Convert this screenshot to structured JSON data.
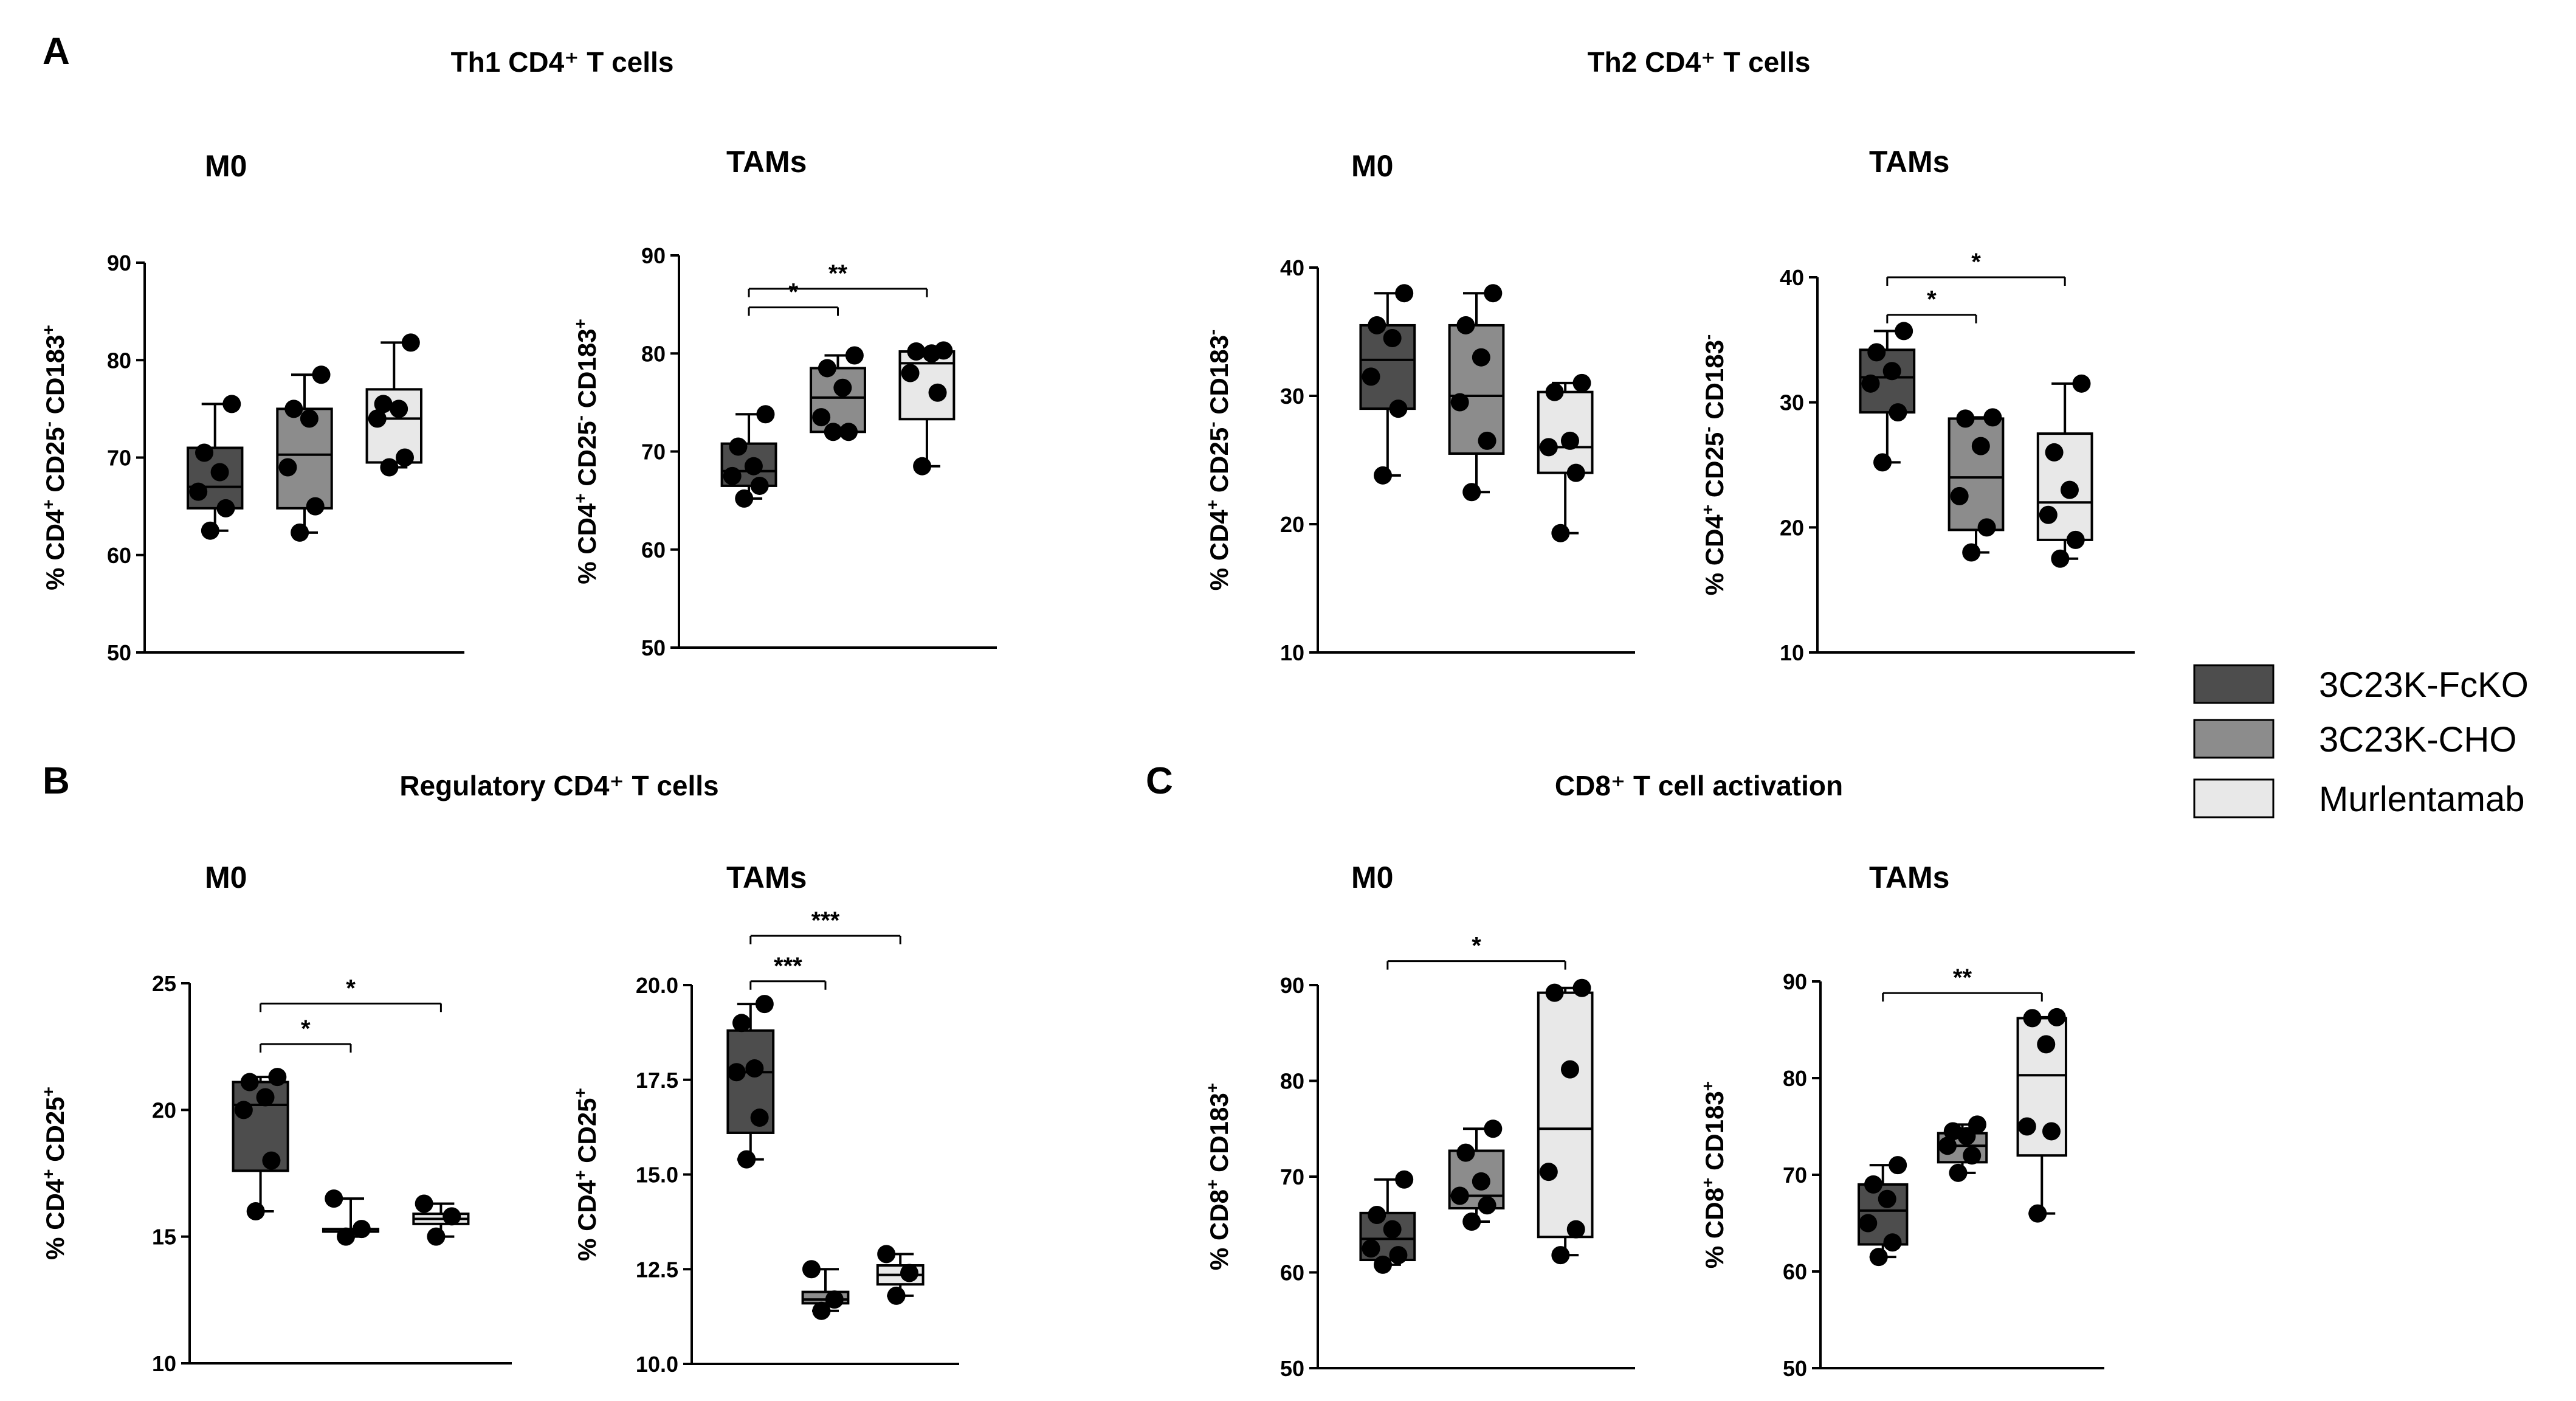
{
  "figure": {
    "panel_letters": {
      "A": "A",
      "B": "B",
      "C": "C"
    },
    "section_titles": {
      "th1": "Th1 CD4⁺ T cells",
      "th2": "Th2 CD4⁺ T cells",
      "treg": "Regulatory CD4⁺ T cells",
      "cd8": "CD8⁺ T cell activation"
    }
  },
  "legend": {
    "items": [
      {
        "label": "3C23K-FcKO",
        "color": "#4d4d4d"
      },
      {
        "label": "3C23K-CHO",
        "color": "#8c8c8c"
      },
      {
        "label": "Murlentamab",
        "color": "#e8e8e8"
      }
    ]
  },
  "chart_data": [
    {
      "id": "th1-m0",
      "type": "box",
      "title": "M0",
      "ylabel": [
        "% CD4",
        "+",
        " CD25",
        "-",
        " CD183",
        "+"
      ],
      "ylim": [
        50,
        90
      ],
      "yticks": [
        50,
        60,
        70,
        80,
        90
      ],
      "tick_labels": [
        "50",
        "60",
        "70",
        "80",
        "90"
      ],
      "categories": [
        "3C23K-FcKO",
        "3C23K-CHO",
        "Murlentamab"
      ],
      "boxes": [
        {
          "min": 62.5,
          "q1": 64.8,
          "median": 67.0,
          "q3": 71.0,
          "max": 75.5,
          "points": [
            62.5,
            64.8,
            66.5,
            68.5,
            70.5,
            75.5
          ]
        },
        {
          "min": 62.3,
          "q1": 64.8,
          "median": 70.3,
          "q3": 75.0,
          "max": 78.5,
          "points": [
            62.3,
            65.0,
            69.0,
            74.0,
            75.0,
            78.5
          ]
        },
        {
          "min": 69.0,
          "q1": 69.5,
          "median": 74.0,
          "q3": 77.0,
          "max": 81.8,
          "points": [
            69.0,
            70.0,
            74.0,
            75.0,
            75.5,
            81.8
          ]
        }
      ],
      "significance": []
    },
    {
      "id": "th1-tams",
      "type": "box",
      "title": "TAMs",
      "ylabel": [
        "% CD4",
        "+",
        " CD25",
        "-",
        " CD183",
        "+"
      ],
      "ylim": [
        50,
        90
      ],
      "yticks": [
        50,
        60,
        70,
        80,
        90
      ],
      "tick_labels": [
        "50",
        "60",
        "70",
        "80",
        "90"
      ],
      "categories": [
        "3C23K-FcKO",
        "3C23K-CHO",
        "Murlentamab"
      ],
      "boxes": [
        {
          "min": 65.2,
          "q1": 66.5,
          "median": 68.0,
          "q3": 70.8,
          "max": 73.8,
          "points": [
            65.2,
            66.5,
            67.5,
            68.5,
            70.5,
            73.8
          ]
        },
        {
          "min": 72.0,
          "q1": 72.0,
          "median": 75.5,
          "q3": 78.5,
          "max": 79.8,
          "points": [
            72.0,
            72.0,
            73.5,
            76.5,
            78.5,
            79.8
          ]
        },
        {
          "min": 68.5,
          "q1": 73.3,
          "median": 79.0,
          "q3": 80.2,
          "max": 80.3,
          "points": [
            68.5,
            76.0,
            78.0,
            80.0,
            80.2,
            80.3
          ]
        }
      ],
      "significance": [
        {
          "from": 0,
          "to": 1,
          "label": "*",
          "y": 84.7
        },
        {
          "from": 0,
          "to": 2,
          "label": "**",
          "y": 86.6
        }
      ]
    },
    {
      "id": "th2-m0",
      "type": "box",
      "title": "M0",
      "ylabel": [
        "% CD4",
        "+",
        " CD25",
        "-",
        " CD183",
        "-"
      ],
      "ylim": [
        10,
        40
      ],
      "yticks": [
        10,
        20,
        30,
        40
      ],
      "tick_labels": [
        "10",
        "20",
        "30",
        "40"
      ],
      "categories": [
        "3C23K-FcKO",
        "3C23K-CHO",
        "Murlentamab"
      ],
      "boxes": [
        {
          "min": 23.8,
          "q1": 29.0,
          "median": 32.8,
          "q3": 35.5,
          "max": 38.0,
          "points": [
            23.8,
            29.0,
            31.5,
            34.5,
            35.5,
            38.0
          ]
        },
        {
          "min": 22.5,
          "q1": 25.5,
          "median": 30.0,
          "q3": 35.5,
          "max": 38.0,
          "points": [
            22.5,
            26.5,
            29.5,
            33.0,
            35.5,
            38.0
          ]
        },
        {
          "min": 19.3,
          "q1": 24.0,
          "median": 26.0,
          "q3": 30.3,
          "max": 31.0,
          "points": [
            19.3,
            24.0,
            26.0,
            26.5,
            30.3,
            31.0
          ]
        }
      ],
      "significance": []
    },
    {
      "id": "th2-tams",
      "type": "box",
      "title": "TAMs",
      "ylabel": [
        "% CD4",
        "+",
        " CD25",
        "-",
        " CD183",
        "-"
      ],
      "ylim": [
        10,
        40
      ],
      "yticks": [
        10,
        20,
        30,
        40
      ],
      "tick_labels": [
        "10",
        "20",
        "30",
        "40"
      ],
      "categories": [
        "3C23K-FcKO",
        "3C23K-CHO",
        "Murlentamab"
      ],
      "boxes": [
        {
          "min": 25.2,
          "q1": 29.2,
          "median": 32.0,
          "q3": 34.2,
          "max": 35.7,
          "points": [
            25.2,
            29.2,
            31.5,
            32.5,
            34.0,
            35.7
          ]
        },
        {
          "min": 18.0,
          "q1": 19.8,
          "median": 24.0,
          "q3": 28.7,
          "max": 28.8,
          "points": [
            18.0,
            20.0,
            22.5,
            26.5,
            28.7,
            28.8
          ]
        },
        {
          "min": 17.5,
          "q1": 19.0,
          "median": 22.0,
          "q3": 27.5,
          "max": 31.5,
          "points": [
            17.5,
            19.0,
            21.0,
            23.0,
            26.0,
            31.5
          ]
        }
      ],
      "significance": [
        {
          "from": 0,
          "to": 1,
          "label": "*",
          "y": 37.0
        },
        {
          "from": 0,
          "to": 2,
          "label": "*",
          "y": 40.0
        }
      ]
    },
    {
      "id": "treg-m0",
      "type": "box",
      "title": "M0",
      "ylabel": [
        "% CD4",
        "+",
        " CD25",
        "+"
      ],
      "ylim": [
        10,
        25
      ],
      "yticks": [
        10,
        15,
        20,
        25
      ],
      "tick_labels": [
        "10",
        "15",
        "20",
        "25"
      ],
      "categories": [
        "3C23K-FcKO",
        "3C23K-CHO",
        "Murlentamab"
      ],
      "boxes": [
        {
          "min": 16.0,
          "q1": 17.6,
          "median": 20.2,
          "q3": 21.1,
          "max": 21.3,
          "points": [
            16.0,
            18.0,
            20.0,
            20.5,
            21.1,
            21.3
          ]
        },
        {
          "min": 15.0,
          "q1": 15.2,
          "median": 15.2,
          "q3": 15.3,
          "max": 16.5,
          "points": [
            15.0,
            15.3,
            16.5
          ]
        },
        {
          "min": 15.0,
          "q1": 15.5,
          "median": 15.7,
          "q3": 15.9,
          "max": 16.3,
          "points": [
            15.0,
            15.8,
            16.3
          ]
        }
      ],
      "significance": [
        {
          "from": 0,
          "to": 1,
          "label": "*",
          "y": 22.6
        },
        {
          "from": 0,
          "to": 2,
          "label": "*",
          "y": 24.2
        }
      ]
    },
    {
      "id": "treg-tams",
      "type": "box",
      "title": "TAMs",
      "ylabel": [
        "% CD4",
        "+",
        " CD25",
        "+"
      ],
      "ylim": [
        10,
        20
      ],
      "yticks": [
        10,
        12.5,
        15,
        17.5,
        20
      ],
      "tick_labels": [
        "10.0",
        "12.5",
        "15.0",
        "17.5",
        "20.0"
      ],
      "categories": [
        "3C23K-FcKO",
        "3C23K-CHO",
        "Murlentamab"
      ],
      "boxes": [
        {
          "min": 15.4,
          "q1": 16.1,
          "median": 17.7,
          "q3": 18.8,
          "max": 19.5,
          "points": [
            15.4,
            16.5,
            17.7,
            17.8,
            19.0,
            19.5
          ]
        },
        {
          "min": 11.4,
          "q1": 11.6,
          "median": 11.7,
          "q3": 11.9,
          "max": 12.5,
          "points": [
            11.4,
            11.7,
            12.5
          ]
        },
        {
          "min": 11.8,
          "q1": 12.1,
          "median": 12.35,
          "q3": 12.6,
          "max": 12.9,
          "points": [
            11.8,
            12.4,
            12.9
          ]
        }
      ],
      "significance": [
        {
          "from": 0,
          "to": 1,
          "label": "***",
          "y": 20.1
        },
        {
          "from": 0,
          "to": 2,
          "label": "***",
          "y": 21.3
        }
      ]
    },
    {
      "id": "cd8-m0",
      "type": "box",
      "title": "M0",
      "ylabel": [
        "% CD8",
        "+",
        " CD183",
        "+"
      ],
      "ylim": [
        50,
        90
      ],
      "yticks": [
        50,
        60,
        70,
        80,
        90
      ],
      "tick_labels": [
        "50",
        "60",
        "70",
        "80",
        "90"
      ],
      "categories": [
        "3C23K-FcKO",
        "3C23K-CHO",
        "Murlentamab"
      ],
      "boxes": [
        {
          "min": 60.8,
          "q1": 61.3,
          "median": 63.5,
          "q3": 66.2,
          "max": 69.7,
          "points": [
            60.8,
            61.8,
            62.5,
            64.5,
            66.0,
            69.7
          ]
        },
        {
          "min": 65.3,
          "q1": 66.7,
          "median": 68.0,
          "q3": 72.7,
          "max": 75.0,
          "points": [
            65.3,
            67.0,
            68.0,
            69.5,
            72.5,
            75.0
          ]
        },
        {
          "min": 61.8,
          "q1": 63.7,
          "median": 75.0,
          "q3": 89.2,
          "max": 89.7,
          "points": [
            61.8,
            64.5,
            70.5,
            81.2,
            89.2,
            89.7
          ]
        }
      ],
      "significance": [
        {
          "from": 0,
          "to": 2,
          "label": "*",
          "y": 92.5
        }
      ]
    },
    {
      "id": "cd8-tams",
      "type": "box",
      "title": "TAMs",
      "ylabel": [
        "% CD8",
        "+",
        " CD183",
        "+"
      ],
      "ylim": [
        50,
        90
      ],
      "yticks": [
        50,
        60,
        70,
        80,
        90
      ],
      "tick_labels": [
        "50",
        "60",
        "70",
        "80",
        "90"
      ],
      "categories": [
        "3C23K-FcKO",
        "3C23K-CHO",
        "Murlentamab"
      ],
      "boxes": [
        {
          "min": 61.5,
          "q1": 62.8,
          "median": 66.3,
          "q3": 69.0,
          "max": 71.0,
          "points": [
            61.5,
            63.0,
            65.0,
            67.5,
            69.0,
            71.0
          ]
        },
        {
          "min": 70.2,
          "q1": 71.3,
          "median": 73.0,
          "q3": 74.3,
          "max": 75.2,
          "points": [
            70.2,
            72.0,
            73.0,
            74.0,
            74.5,
            75.2
          ]
        },
        {
          "min": 66.0,
          "q1": 72.0,
          "median": 80.3,
          "q3": 86.2,
          "max": 86.3,
          "points": [
            66.0,
            74.5,
            75.0,
            83.5,
            86.2,
            86.3
          ]
        }
      ],
      "significance": [
        {
          "from": 0,
          "to": 2,
          "label": "**",
          "y": 88.8
        }
      ]
    }
  ]
}
